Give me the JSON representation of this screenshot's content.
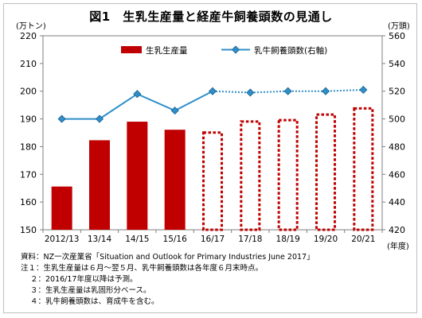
{
  "title": "図1　生乳生産量と経産牛飼養頭数の見通し",
  "chart_data": {
    "type": "bar",
    "categories": [
      "2012/13",
      "13/14",
      "14/15",
      "15/16",
      "16/17",
      "17/18",
      "18/19",
      "19/20",
      "20/21"
    ],
    "x_unit": "(年度)",
    "series": [
      {
        "name": "生乳生産量",
        "axis": "left",
        "values": [
          165.6,
          182.3,
          189.0,
          186.1,
          185.5,
          189.5,
          190.0,
          192.0,
          194.2
        ],
        "forecast_from_index": 4,
        "color": "#c00000"
      },
      {
        "name": "乳牛飼養頭数(右軸)",
        "axis": "right",
        "type": "line",
        "values": [
          500,
          500,
          518,
          506,
          520,
          519,
          520,
          520,
          521
        ],
        "color": "#2f8fc9"
      }
    ],
    "y_left": {
      "label": "(万トン)",
      "ylim": [
        150,
        220
      ],
      "ticks": [
        150,
        160,
        170,
        180,
        190,
        200,
        210,
        220
      ]
    },
    "y_right": {
      "label": "(万頭)",
      "ylim": [
        420,
        560
      ],
      "ticks": [
        420,
        440,
        460,
        480,
        500,
        520,
        540,
        560
      ]
    },
    "legend_position": "top"
  },
  "notes": {
    "source": "資料：NZ一次産業省「Situation and Outlook for Primary Industries June 2017」",
    "note1": "注１：生乳生産量は６月～翌５月、乳牛飼養頭数は各年度６月末時点。",
    "note2": "２：2016/17年度以降は予測。",
    "note3": "３：生乳生産量は乳固形分ベース。",
    "note4": "４：乳牛飼養頭数は、育成牛を含む。"
  }
}
